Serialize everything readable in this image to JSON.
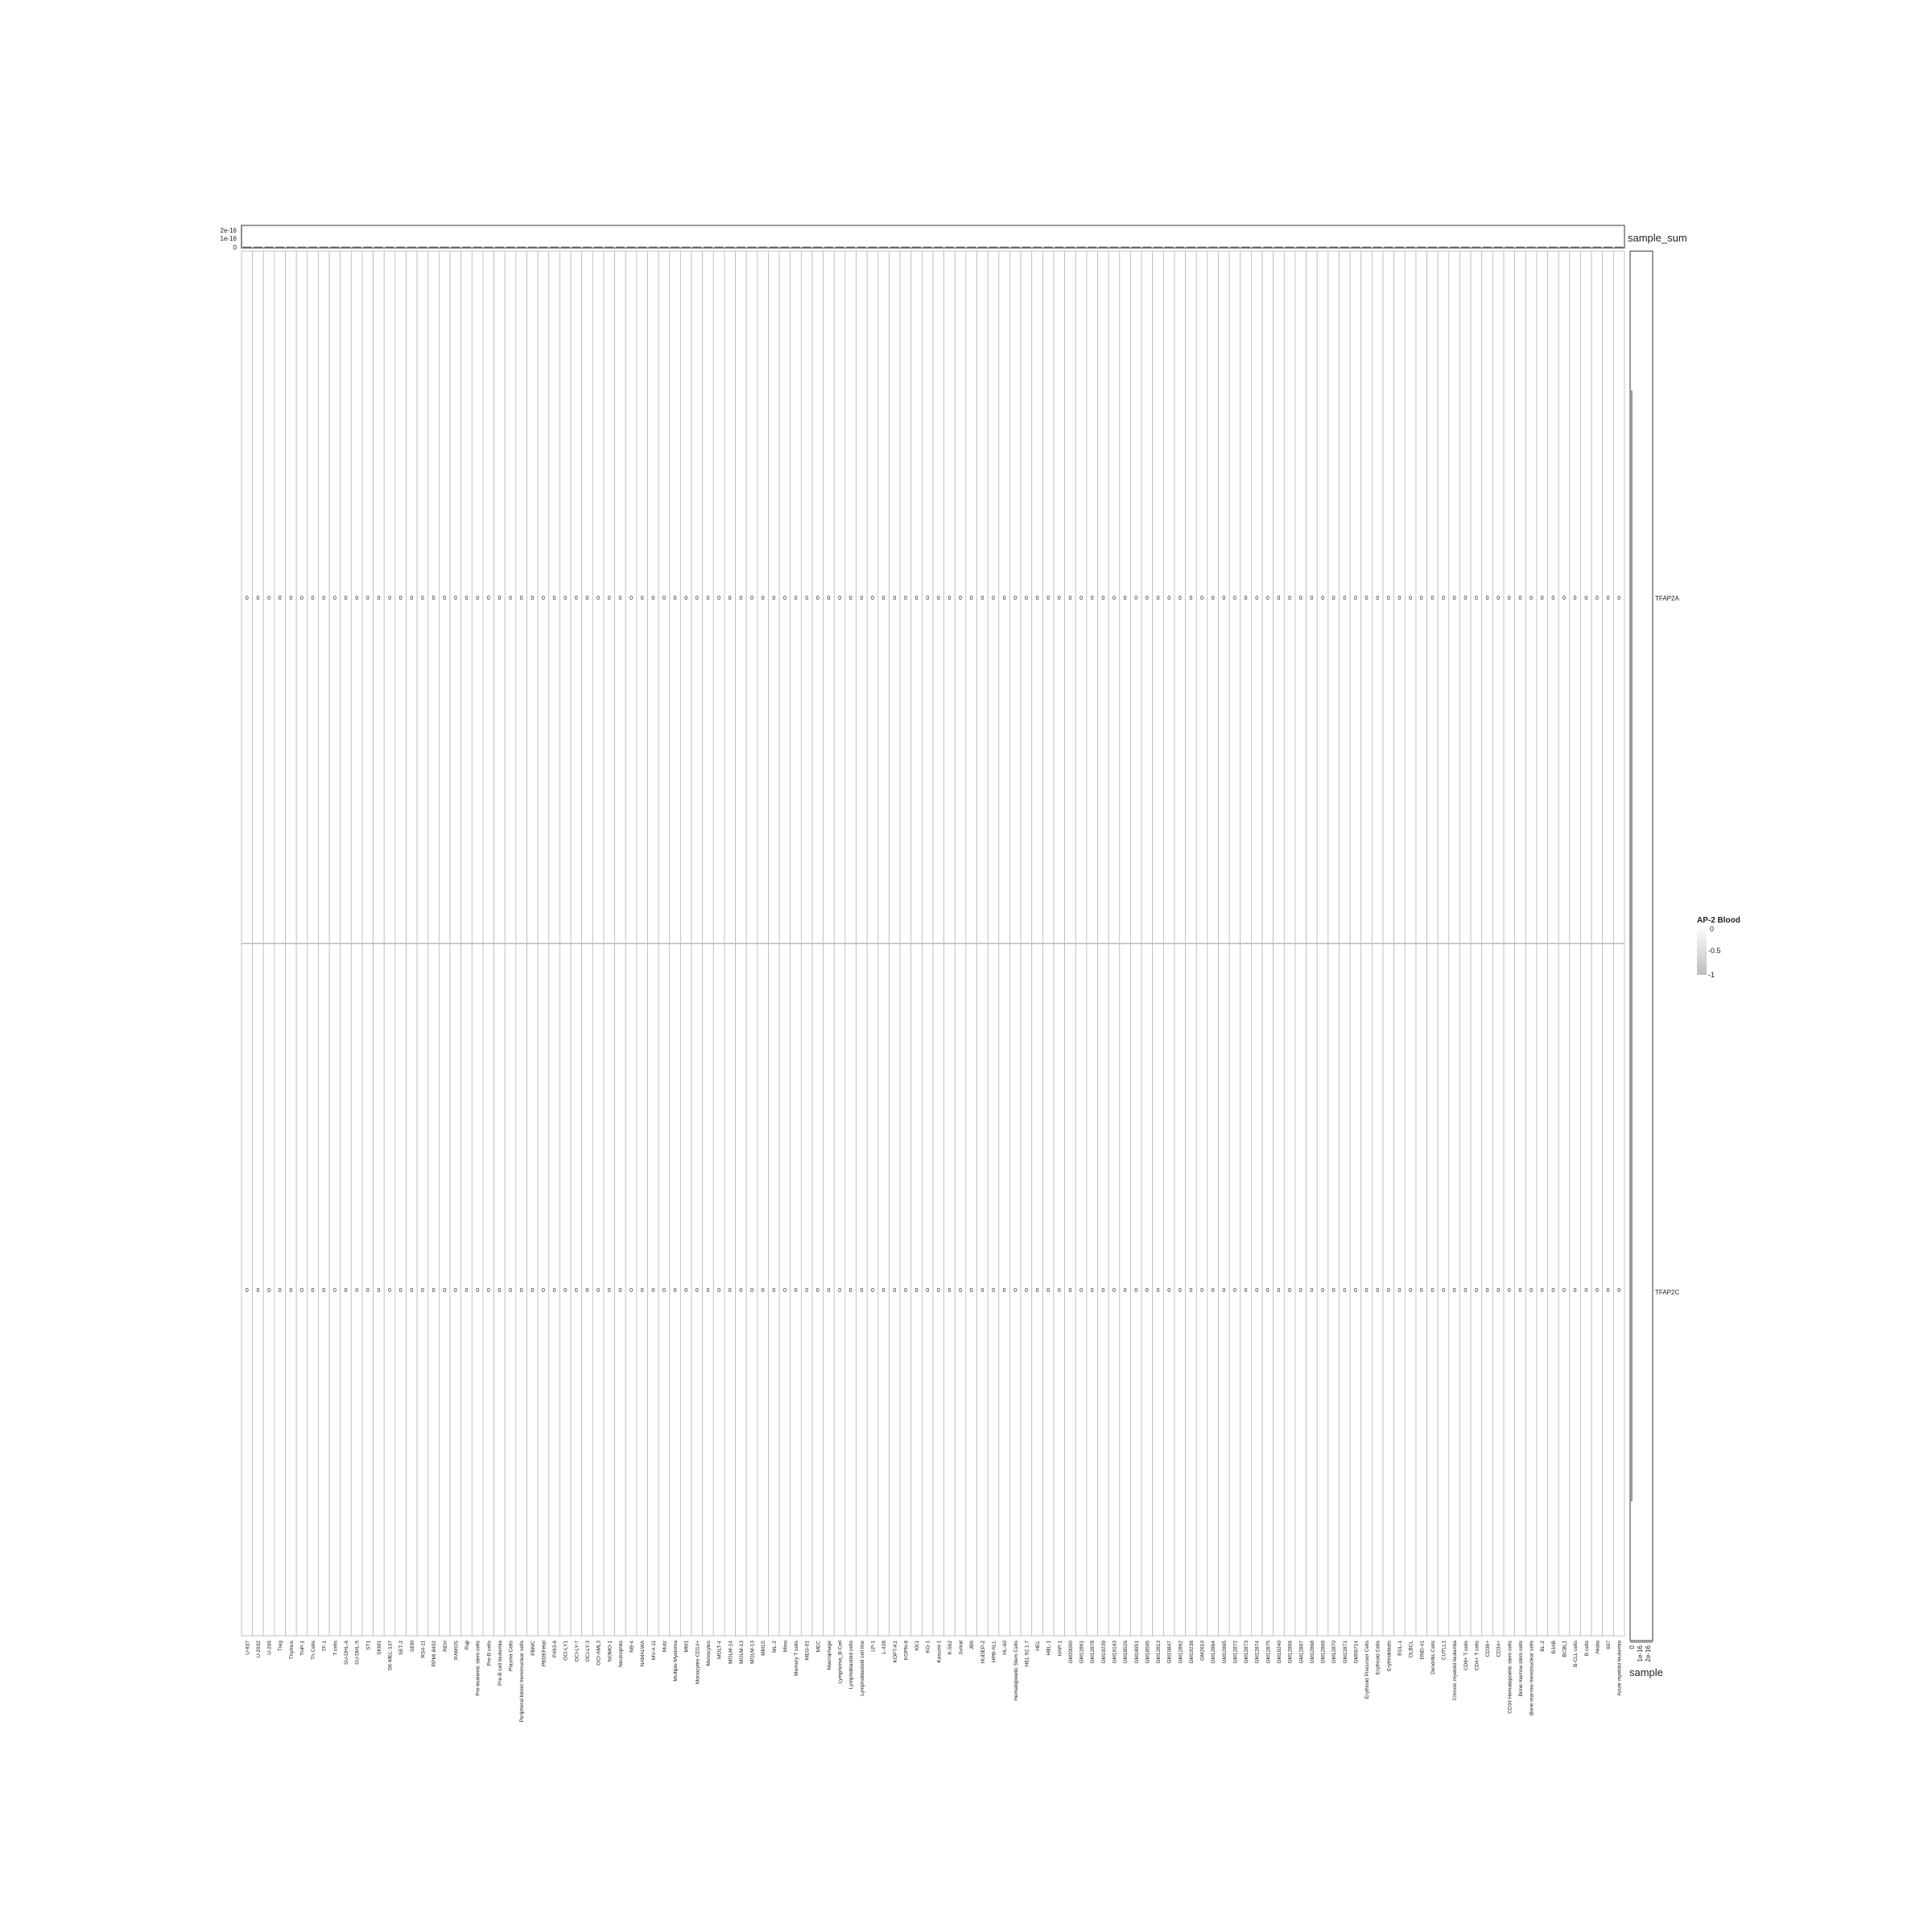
{
  "chart_data": {
    "type": "heatmap",
    "title": "",
    "xlabel": "",
    "ylabel": "",
    "rows": [
      "TFAP2A",
      "TFAP2C"
    ],
    "columns": [
      "U-937",
      "U-2932",
      "U-266",
      "Treg",
      "Thymus",
      "THP-1",
      "Th Cells",
      "TF-1",
      "T cells",
      "SU-DHL-6",
      "SU-DHL-5",
      "ST1",
      "SKM1",
      "SK-MEL-147",
      "SET-2",
      "SEM",
      "RS4-11",
      "RPMI 8402",
      "REH",
      "RAMOS",
      "Raji",
      "Pre-leukemic stem cells",
      "Pre-B cells",
      "Pre-B cell leukemia",
      "Plasma Cells",
      "Peripheral blood mononuclear cells",
      "PBMC",
      "PBDEFetal",
      "P493-6",
      "OCI-LY1",
      "OCI-LY-7",
      "OCI-LY-3",
      "OCI-AML3",
      "NOMO-1",
      "Neutrophils",
      "NB-4",
      "NAMALWA",
      "MV-4-11",
      "Mutz",
      "Multiple Myeloma",
      "MM1",
      "Monocytes-CD14+",
      "Monocytes",
      "MOLT-4",
      "MOLM-14",
      "MOLM-13",
      "MOLM-13",
      "MM1S",
      "ML-2",
      "Mino",
      "Memory T cells",
      "MEG-01",
      "MEC",
      "Macrophage",
      "Lymphoma_B-Cell",
      "Lymphoblastoid cells",
      "Lymphoblastoid cell line",
      "LP-1",
      "L-428",
      "KOPT-K1",
      "KOPN-8",
      "KK1",
      "KG-1",
      "Kasumi-1",
      "K-562",
      "Jurkat",
      "JB6",
      "HUDEP-2",
      "HPB-ALL",
      "HL-60",
      "Hematopoietic Stem Cells",
      "HEL 92.1.7",
      "HEL",
      "HBL-1",
      "HAP-1",
      "GM20000",
      "GM12891",
      "GM12878",
      "GM19239",
      "GM19193",
      "GM18526",
      "GM18951",
      "GM18505",
      "GM12813",
      "GM10847",
      "GM12892",
      "GM19238",
      "GM2610",
      "GM12864",
      "GM12865",
      "GM12872",
      "GM12873",
      "GM12874",
      "GM12875",
      "GM19240",
      "GM12866",
      "GM12867",
      "GM12868",
      "GM12869",
      "GM12870",
      "GM12871",
      "GM06714",
      "Erythroid Precursor Cells",
      "Erythroid Cells",
      "Erythroblasts",
      "EOL-1",
      "DLBCL",
      "DND-41",
      "Dendritic Cells",
      "CUTLL1",
      "Chronic myeloid leukemia",
      "CD8+ T cells",
      "CD4+ T cells",
      "CD36+",
      "CD34+",
      "CD34 Hematopoietic stem cells",
      "Bone marrow stem cells",
      "Bone marrow mononuclear cells",
      "BL-2",
      "BJAB",
      "BCBL1",
      "B-CLL cells",
      "B cells",
      "Akata",
      "697",
      "Acute myeloid leukemia"
    ],
    "value_all": 0,
    "cell_label": "0",
    "legend": {
      "title": "AP-2 Blood",
      "ticks": [
        "0",
        "-0.5",
        "-1"
      ],
      "range": [
        -1,
        0
      ],
      "position": "right"
    },
    "top_annotation": {
      "name": "sample_sum",
      "ticks": [
        "2e-16",
        "1e-16",
        "0"
      ],
      "values_all": 0
    },
    "right_annotation": {
      "name": "sample",
      "ticks": [
        "0",
        "1e-16",
        "2e-16"
      ],
      "values_all": 0
    },
    "grid": true
  },
  "colors": {
    "cell_fill": "#ffffff",
    "grid": "#b8b8b8",
    "frame": "#555555",
    "legend_top": "#ffffff",
    "legend_bottom": "#bdbdbd"
  }
}
